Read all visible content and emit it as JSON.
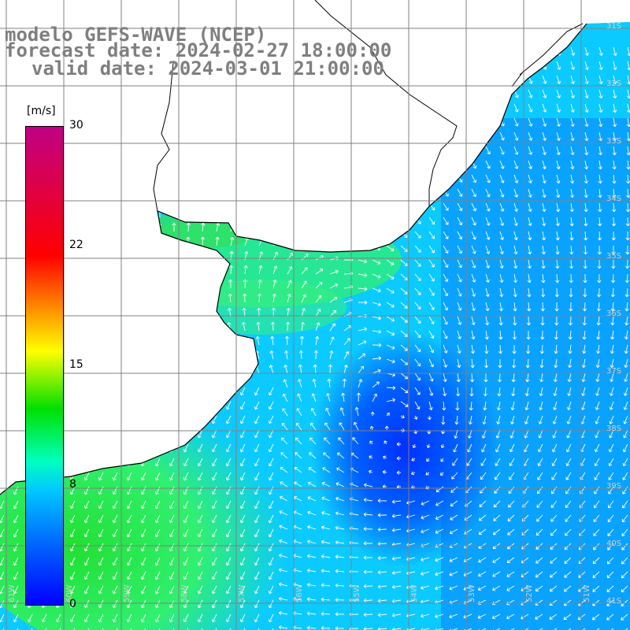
{
  "title": {
    "line1": "modelo GEFS-WAVE (NCEP)",
    "line2": "forecast date: 2024-02-27 18:00:00",
    "line3": "valid date: 2024-03-01 21:00:00"
  },
  "colorbar": {
    "unit": "[m/s]",
    "ticks": [
      {
        "label": "30",
        "value": 30
      },
      {
        "label": "22",
        "value": 22
      },
      {
        "label": "15",
        "value": 15
      },
      {
        "label": "8",
        "value": 8
      },
      {
        "label": "0",
        "value": 0
      }
    ],
    "colors": [
      "#0000ff",
      "#0060ff",
      "#00c8ff",
      "#00ffc0",
      "#00e000",
      "#ffff00",
      "#ff8000",
      "#ff0000",
      "#c00085"
    ]
  },
  "axes": {
    "lon_labels": [
      "61W",
      "60W",
      "59W",
      "58W",
      "57W",
      "56W",
      "55W",
      "54W",
      "53W",
      "52W",
      "51W"
    ],
    "lat_labels": [
      "31S",
      "32S",
      "33S",
      "34S",
      "35S",
      "36S",
      "37S",
      "38S",
      "39S",
      "40S",
      "41S"
    ]
  },
  "colors": {
    "land": "#ffffff",
    "grid": "#808080",
    "coast": "#000000",
    "arrow": "#ffffff",
    "title": "#7f7f7f"
  }
}
